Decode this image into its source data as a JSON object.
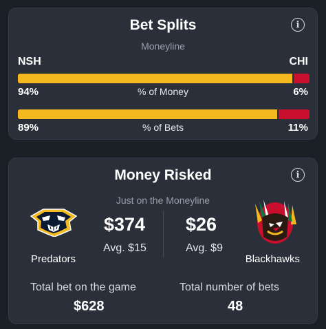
{
  "bet_splits": {
    "title": "Bet Splits",
    "info_icon": "i",
    "subtitle": "Moneyline",
    "team_left": "NSH",
    "team_right": "CHI",
    "colors": {
      "left": "#f4b91e",
      "right": "#c8102e"
    },
    "money": {
      "left_pct": "94%",
      "right_pct": "6%",
      "label": "% of Money",
      "left_value": 94
    },
    "bets": {
      "left_pct": "89%",
      "right_pct": "11%",
      "label": "% of Bets",
      "left_value": 89
    }
  },
  "money_risked": {
    "title": "Money Risked",
    "info_icon": "i",
    "subtitle": "Just on the Moneyline",
    "left_team": {
      "name": "Predators",
      "amount": "$374",
      "avg": "Avg. $15",
      "logo": "predators-logo"
    },
    "right_team": {
      "name": "Blackhawks",
      "amount": "$26",
      "avg": "Avg. $9",
      "logo": "blackhawks-logo"
    },
    "total_bet_label": "Total bet on the game",
    "total_bet_value": "$628",
    "total_count_label": "Total number of bets",
    "total_count_value": "48"
  }
}
